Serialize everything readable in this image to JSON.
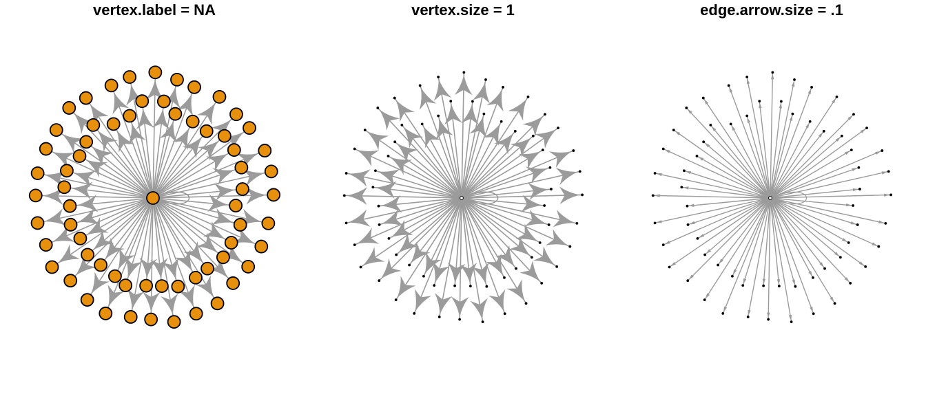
{
  "colors": {
    "background": "#ffffff",
    "edge": "#9b9b9b",
    "vertex_fill": "#e6900e",
    "vertex_stroke": "#000000",
    "dot": "#000000"
  },
  "panels": [
    {
      "title": "vertex.label = NA",
      "vertex_style": "circle",
      "arrow_style": "large"
    },
    {
      "title": "vertex.size = 1",
      "vertex_style": "dot",
      "arrow_style": "large"
    },
    {
      "title": "edge.arrow.size = .1",
      "vertex_style": "dot",
      "arrow_style": "small"
    }
  ],
  "graph": {
    "layout": "star",
    "hub": "center",
    "leaf_count": 64,
    "edge_direction": "hub-to-leaf",
    "self_loop_on_hub": true
  }
}
